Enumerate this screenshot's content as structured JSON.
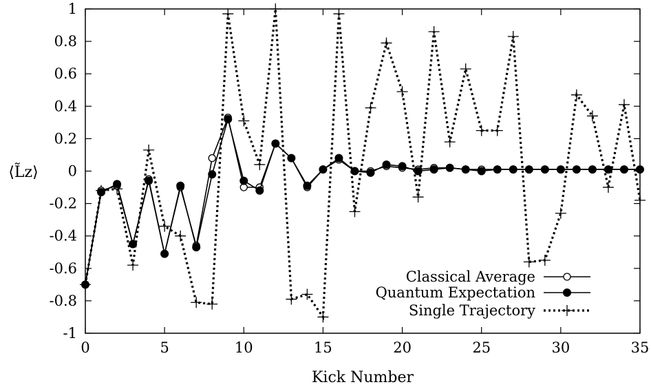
{
  "chart_data": {
    "type": "line",
    "title": "",
    "xlabel": "Kick Number",
    "ylabel": "⟨L̃z⟩",
    "xlim": [
      0,
      35
    ],
    "ylim": [
      -1,
      1
    ],
    "x_ticks": [
      0,
      5,
      10,
      15,
      20,
      25,
      30,
      35
    ],
    "x_tick_labels": [
      "0",
      "5",
      "10",
      "15",
      "20",
      "25",
      "30",
      "35"
    ],
    "y_ticks": [
      -1,
      -0.8,
      -0.6,
      -0.4,
      -0.2,
      0,
      0.2,
      0.4,
      0.6,
      0.8,
      1
    ],
    "y_tick_labels": [
      "-1",
      "-0.8",
      "-0.6",
      "-0.4",
      "-0.2",
      "0",
      "0.2",
      "0.4",
      "0.6",
      "0.8",
      "1"
    ],
    "grid": false,
    "legend_position": "bottom-right",
    "series": [
      {
        "name": "Classical Average",
        "style": "solid-line-open-circle",
        "color": "#000000",
        "x": [
          0,
          1,
          2,
          3,
          4,
          5,
          6,
          7,
          8,
          9,
          10,
          11,
          12,
          13,
          14,
          15,
          16,
          17,
          18,
          19,
          20,
          21,
          22,
          23,
          24,
          25,
          26,
          27,
          28,
          29,
          30,
          31,
          32,
          33,
          34,
          35
        ],
        "y": [
          -0.7,
          -0.12,
          -0.09,
          -0.45,
          -0.05,
          -0.51,
          -0.1,
          -0.46,
          0.08,
          0.33,
          -0.1,
          -0.1,
          0.17,
          0.08,
          -0.1,
          0.01,
          0.07,
          0.0,
          0.0,
          0.03,
          0.02,
          0.01,
          0.02,
          0.02,
          0.01,
          0.01,
          0.01,
          0.01,
          0.01,
          0.01,
          0.01,
          0.01,
          0.01,
          0.01,
          0.01,
          0.01
        ]
      },
      {
        "name": "Quantum Expectation",
        "style": "solid-line-filled-circle",
        "color": "#000000",
        "x": [
          0,
          1,
          2,
          3,
          4,
          5,
          6,
          7,
          8,
          9,
          10,
          11,
          12,
          13,
          14,
          15,
          16,
          17,
          18,
          19,
          20,
          21,
          22,
          23,
          24,
          25,
          26,
          27,
          28,
          29,
          30,
          31,
          32,
          33,
          34,
          35
        ],
        "y": [
          -0.7,
          -0.13,
          -0.08,
          -0.45,
          -0.06,
          -0.51,
          -0.09,
          -0.47,
          -0.02,
          0.32,
          -0.06,
          -0.12,
          0.17,
          0.08,
          -0.09,
          0.01,
          0.08,
          0.0,
          -0.01,
          0.04,
          0.03,
          0.0,
          0.01,
          0.02,
          0.01,
          0.0,
          0.01,
          0.01,
          0.01,
          0.01,
          0.01,
          0.01,
          0.01,
          0.01,
          0.01,
          0.01
        ]
      },
      {
        "name": "Single Trajectory",
        "style": "dotted-line-plus",
        "color": "#000000",
        "x": [
          0,
          1,
          2,
          3,
          4,
          5,
          6,
          7,
          8,
          9,
          10,
          11,
          12,
          13,
          14,
          15,
          16,
          17,
          18,
          19,
          20,
          21,
          22,
          23,
          24,
          25,
          26,
          27,
          28,
          29,
          30,
          31,
          32,
          33,
          34,
          35
        ],
        "y": [
          -0.7,
          -0.12,
          -0.11,
          -0.58,
          0.13,
          -0.34,
          -0.4,
          -0.81,
          -0.82,
          0.97,
          0.31,
          0.04,
          1.0,
          -0.79,
          -0.76,
          -0.9,
          0.97,
          -0.25,
          0.39,
          0.79,
          0.49,
          -0.16,
          0.86,
          0.18,
          0.63,
          0.25,
          0.25,
          0.83,
          -0.56,
          -0.55,
          -0.26,
          0.47,
          0.34,
          -0.1,
          0.41,
          -0.18
        ]
      }
    ]
  }
}
